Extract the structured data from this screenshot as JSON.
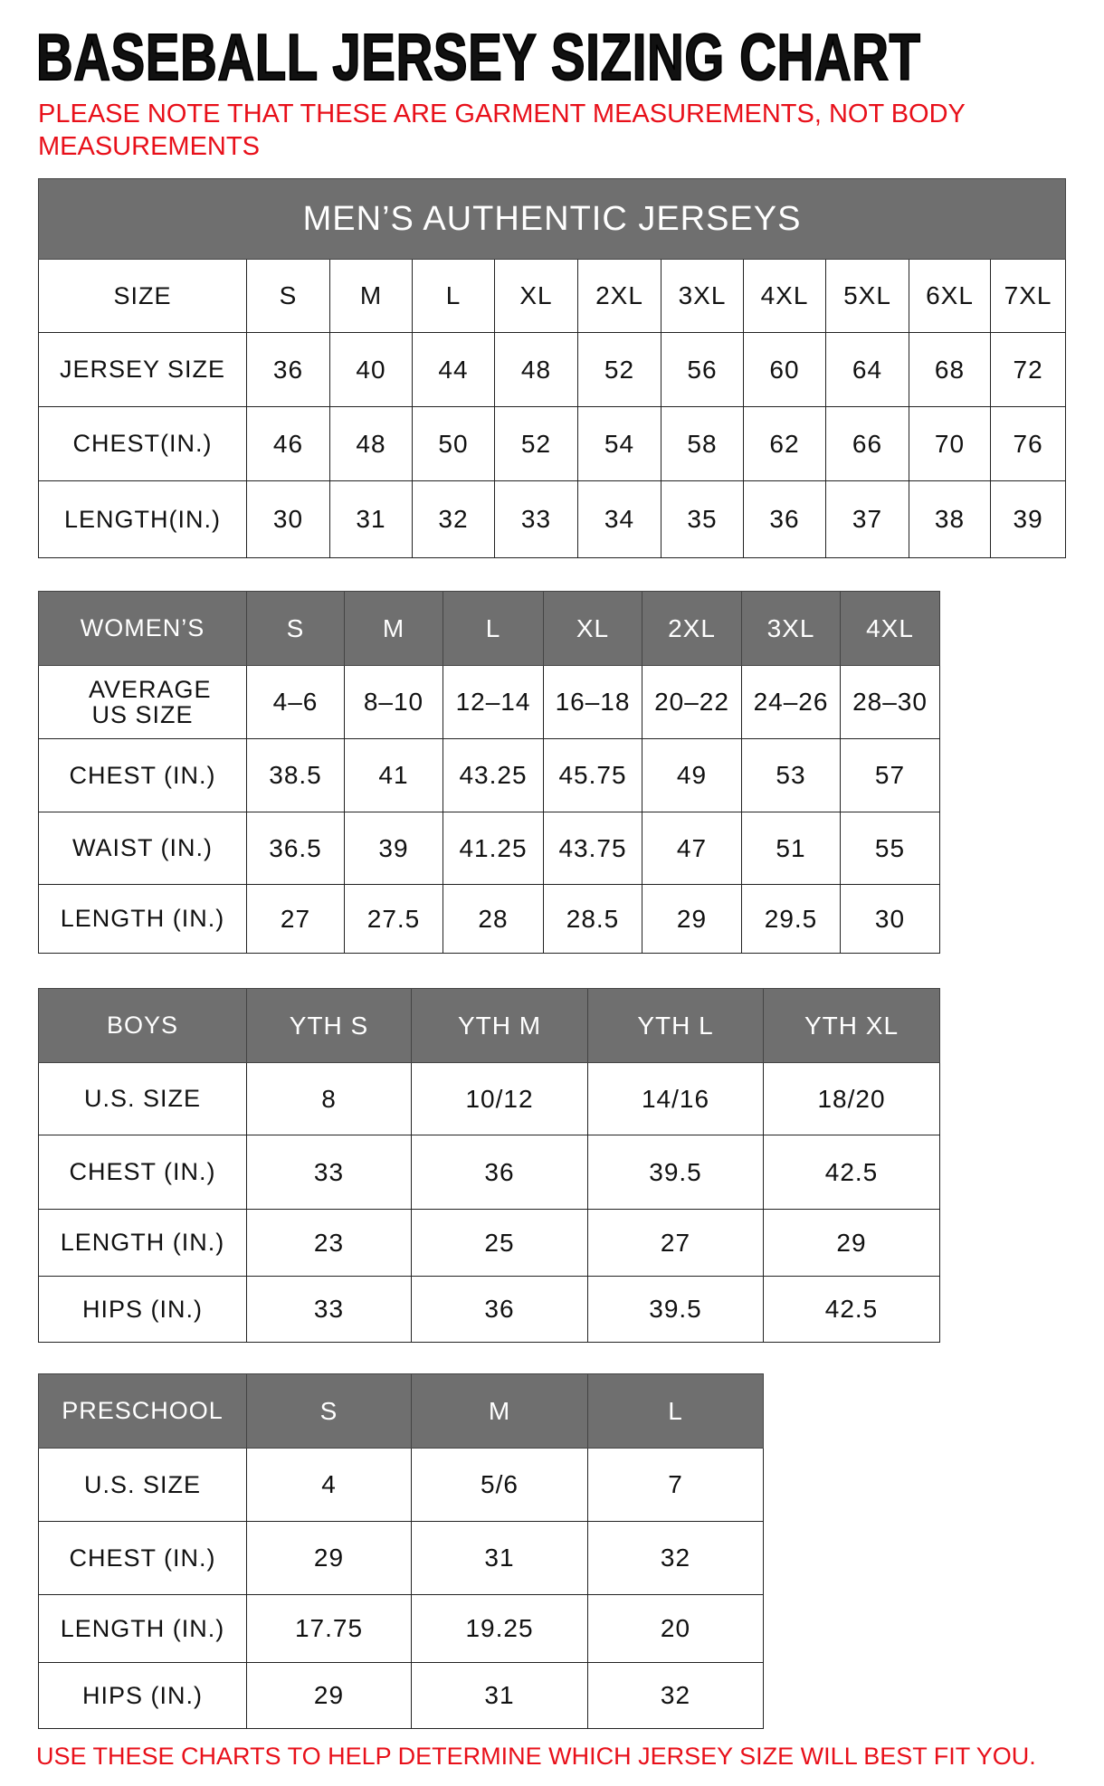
{
  "title": "BASEBALL JERSEY SIZING CHART",
  "note": "PLEASE NOTE THAT THESE ARE GARMENT MEASUREMENTS, NOT BODY MEASUREMENTS",
  "footer": "USE THESE CHARTS TO HELP DETERMINE WHICH JERSEY SIZE WILL BEST FIT YOU.",
  "colors": {
    "header_bg": "#6f6f6f",
    "note_red": "#e8101a"
  },
  "mens": {
    "title": "MEN’S AUTHENTIC JERSEYS",
    "header": [
      "SIZE",
      "S",
      "M",
      "L",
      "XL",
      "2XL",
      "3XL",
      "4XL",
      "5XL",
      "6XL",
      "7XL"
    ],
    "rows": [
      [
        "JERSEY SIZE",
        "36",
        "40",
        "44",
        "48",
        "52",
        "56",
        "60",
        "64",
        "68",
        "72"
      ],
      [
        "CHEST(IN.)",
        "46",
        "48",
        "50",
        "52",
        "54",
        "58",
        "62",
        "66",
        "70",
        "76"
      ],
      [
        "LENGTH(IN.)",
        "30",
        "31",
        "32",
        "33",
        "34",
        "35",
        "36",
        "37",
        "38",
        "39"
      ]
    ]
  },
  "womens": {
    "header": [
      "WOMEN’S",
      "S",
      "M",
      "L",
      "XL",
      "2XL",
      "3XL",
      "4XL"
    ],
    "rows": [
      [
        "AVERAGE US SIZE",
        "4–6",
        "8–10",
        "12–14",
        "16–18",
        "20–22",
        "24–26",
        "28–30"
      ],
      [
        "CHEST (IN.)",
        "38.5",
        "41",
        "43.25",
        "45.75",
        "49",
        "53",
        "57"
      ],
      [
        "WAIST (IN.)",
        "36.5",
        "39",
        "41.25",
        "43.75",
        "47",
        "51",
        "55"
      ],
      [
        "LENGTH (IN.)",
        "27",
        "27.5",
        "28",
        "28.5",
        "29",
        "29.5",
        "30"
      ]
    ]
  },
  "boys": {
    "header": [
      "BOYS",
      "YTH S",
      "YTH M",
      "YTH L",
      "YTH XL"
    ],
    "rows": [
      [
        "U.S. SIZE",
        "8",
        "10/12",
        "14/16",
        "18/20"
      ],
      [
        "CHEST (IN.)",
        "33",
        "36",
        "39.5",
        "42.5"
      ],
      [
        "LENGTH (IN.)",
        "23",
        "25",
        "27",
        "29"
      ],
      [
        "HIPS (IN.)",
        "33",
        "36",
        "39.5",
        "42.5"
      ]
    ]
  },
  "preschool": {
    "header": [
      "PRESCHOOL",
      "S",
      "M",
      "L"
    ],
    "rows": [
      [
        "U.S. SIZE",
        "4",
        "5/6",
        "7"
      ],
      [
        "CHEST (IN.)",
        "29",
        "31",
        "32"
      ],
      [
        "LENGTH (IN.)",
        "17.75",
        "19.25",
        "20"
      ],
      [
        "HIPS (IN.)",
        "29",
        "31",
        "32"
      ]
    ]
  }
}
